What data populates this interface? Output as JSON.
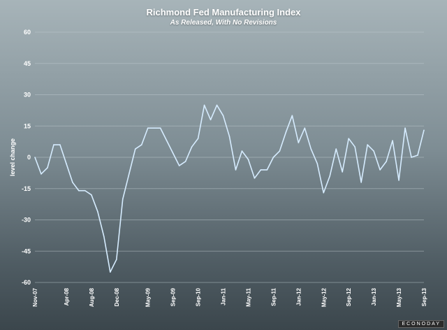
{
  "chart_data": {
    "type": "line",
    "title": "Richmond Fed Manufacturing Index",
    "subtitle": "As Released, With No Revisions",
    "xlabel": "",
    "ylabel": "level change",
    "ylim": [
      -60,
      60
    ],
    "yticks": [
      60,
      45,
      30,
      15,
      0,
      -15,
      -30,
      -45,
      -60
    ],
    "grid": true,
    "legend": "none",
    "line_color": "#d6ecff",
    "xtick_labels": [
      "Nov-07",
      "Apr-08",
      "Aug-08",
      "Dec-08",
      "May-09",
      "Sep-09",
      "Sep-10",
      "Jan-11",
      "May-11",
      "Sep-11",
      "Jan-12",
      "May-12",
      "Sep-12",
      "Jan-13",
      "May-13",
      "Sep-13"
    ],
    "xtick_index": [
      0,
      5,
      9,
      13,
      18,
      22,
      26,
      30,
      34,
      38,
      42,
      46,
      50,
      54,
      58,
      62
    ],
    "series": [
      {
        "name": "",
        "values": [
          0,
          -8,
          -5,
          6,
          6,
          -3,
          -12,
          -16,
          -16,
          -18,
          -26,
          -38,
          -55,
          -49,
          -20,
          -8,
          4,
          6,
          14,
          14,
          14,
          8,
          2,
          -4,
          -2,
          5,
          9,
          25,
          18,
          25,
          20,
          10,
          -6,
          3,
          -1,
          -10,
          -6,
          -6,
          0,
          3,
          12,
          20,
          7,
          14,
          4,
          -3,
          -17,
          -9,
          4,
          -7,
          9,
          5,
          -12,
          6,
          3,
          -6,
          -2,
          8,
          -11,
          14,
          0,
          1,
          13
        ]
      }
    ]
  },
  "watermark": "ECONODAY"
}
